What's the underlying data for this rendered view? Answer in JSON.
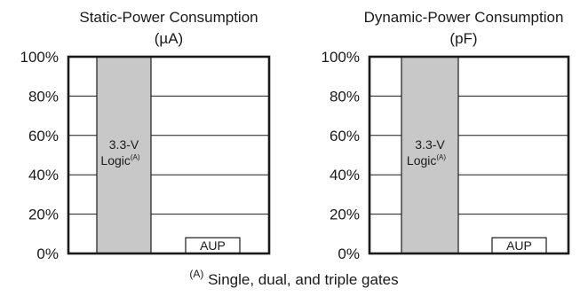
{
  "chart_data": [
    {
      "type": "bar",
      "title": "Static-Power Consumption",
      "unit": "(µA)",
      "ylim": [
        0,
        100
      ],
      "yticks": [
        "0%",
        "20%",
        "40%",
        "60%",
        "80%",
        "100%"
      ],
      "grid": true,
      "categories": [
        "3.3-V Logic",
        "AUP"
      ],
      "values": [
        100,
        8
      ],
      "bar_labels": [
        {
          "text": "3.3-V",
          "line2": "Logic",
          "sup": "(A)"
        },
        {
          "text": "AUP",
          "line2": "",
          "sup": ""
        }
      ],
      "colors": [
        "#c8c8c8",
        "#ffffff"
      ]
    },
    {
      "type": "bar",
      "title": "Dynamic-Power Consumption",
      "unit": "(pF)",
      "ylim": [
        0,
        100
      ],
      "yticks": [
        "0%",
        "20%",
        "40%",
        "60%",
        "80%",
        "100%"
      ],
      "grid": true,
      "categories": [
        "3.3-V Logic",
        "AUP"
      ],
      "values": [
        100,
        8
      ],
      "bar_labels": [
        {
          "text": "3.3-V",
          "line2": "Logic",
          "sup": "(A)"
        },
        {
          "text": "AUP",
          "line2": "",
          "sup": ""
        }
      ],
      "colors": [
        "#c8c8c8",
        "#ffffff"
      ]
    }
  ],
  "footnote": {
    "marker": "(A)",
    "text": "Single, dual, and triple gates"
  }
}
